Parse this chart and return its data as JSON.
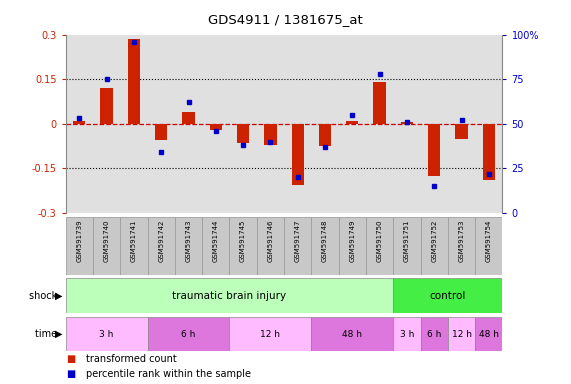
{
  "title": "GDS4911 / 1381675_at",
  "samples": [
    "GSM591739",
    "GSM591740",
    "GSM591741",
    "GSM591742",
    "GSM591743",
    "GSM591744",
    "GSM591745",
    "GSM591746",
    "GSM591747",
    "GSM591748",
    "GSM591749",
    "GSM591750",
    "GSM591751",
    "GSM591752",
    "GSM591753",
    "GSM591754"
  ],
  "red_values": [
    0.01,
    0.12,
    0.285,
    -0.055,
    0.04,
    -0.02,
    -0.065,
    -0.07,
    -0.205,
    -0.075,
    0.01,
    0.14,
    0.005,
    -0.175,
    -0.05,
    -0.19
  ],
  "blue_pct": [
    53,
    75,
    96,
    34,
    62,
    46,
    38,
    40,
    20,
    37,
    55,
    78,
    51,
    15,
    52,
    22
  ],
  "ylim": [
    -0.3,
    0.3
  ],
  "bar_color": "#cc2200",
  "dot_color": "#0000cc",
  "dotted_lines": [
    0.15,
    -0.15
  ],
  "zero_line_color": "#cc0000",
  "bg_color": "#e0e0e0",
  "names_bg": "#c8c8c8",
  "tbi_color": "#bbffbb",
  "ctrl_color": "#44ee44",
  "time_color_light": "#ffbbff",
  "time_color_dark": "#dd77dd"
}
